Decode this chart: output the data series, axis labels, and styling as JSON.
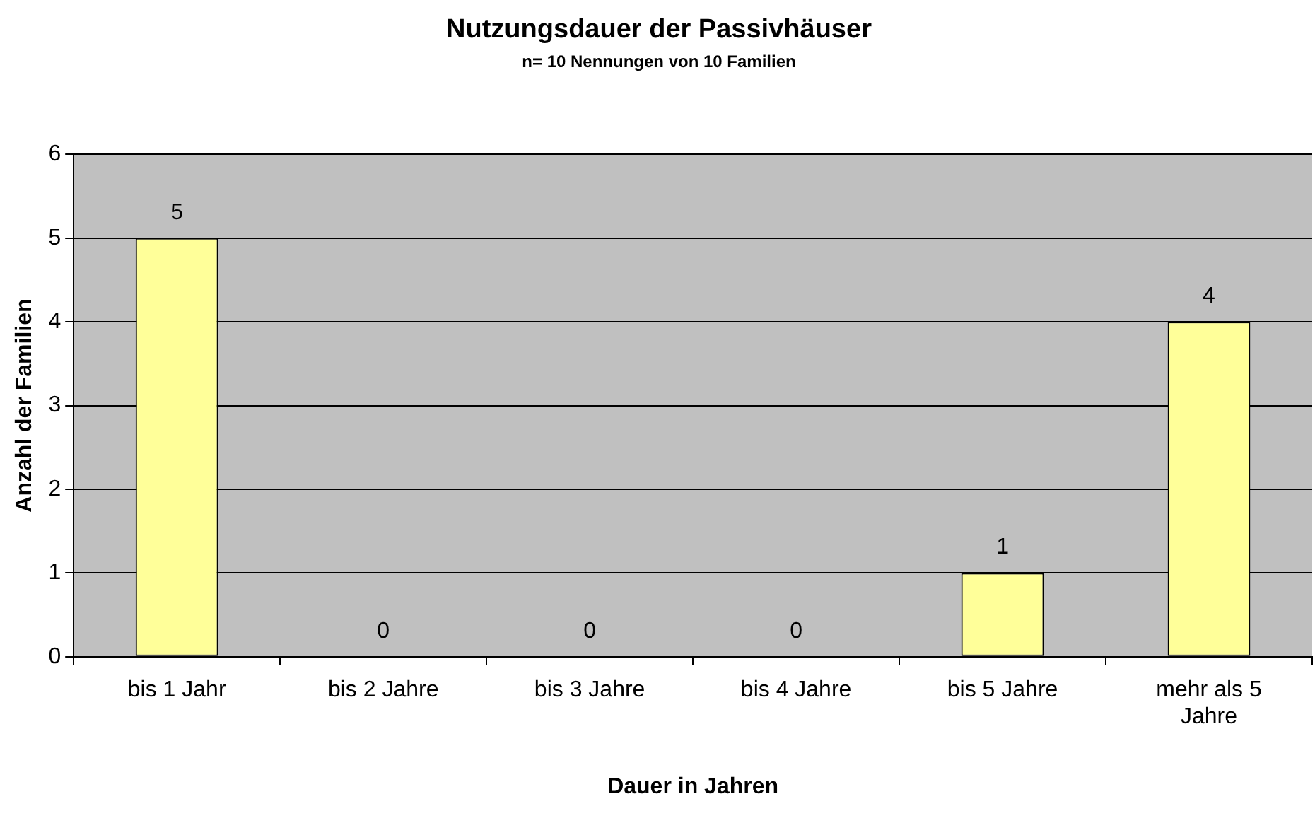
{
  "chart_data": {
    "type": "bar",
    "title": "Nutzungsdauer der Passivhäuser",
    "subtitle": "n= 10 Nennungen von 10 Familien",
    "xlabel": "Dauer in Jahren",
    "ylabel": "Anzahl der Familien",
    "categories": [
      "bis 1 Jahr",
      "bis 2 Jahre",
      "bis 3 Jahre",
      "bis 4 Jahre",
      "bis 5 Jahre",
      "mehr als 5 Jahre"
    ],
    "values": [
      5,
      0,
      0,
      0,
      1,
      4
    ],
    "color": "#ffff99",
    "ylim": [
      0,
      6
    ],
    "yticks": [
      0,
      1,
      2,
      3,
      4,
      5,
      6
    ],
    "grid": "y",
    "data_labels": true,
    "legend": false
  }
}
